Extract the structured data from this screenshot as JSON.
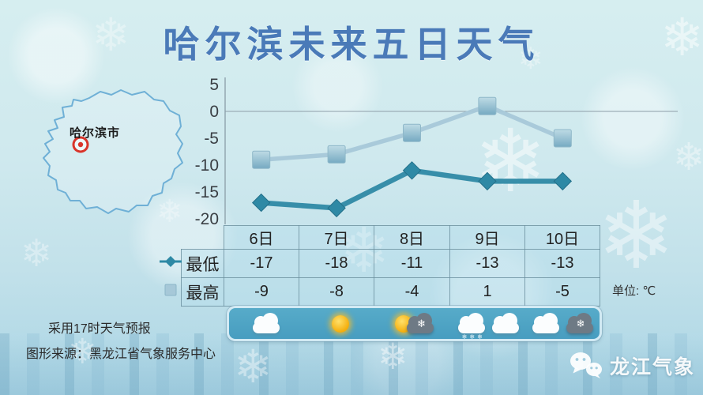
{
  "title": "哈尔滨未来五日天气",
  "map": {
    "region_label": "哈尔滨市"
  },
  "chart_data": {
    "type": "line",
    "categories": [
      "6日",
      "7日",
      "8日",
      "9日",
      "10日"
    ],
    "series": [
      {
        "name": "最低",
        "values": [
          -17,
          -18,
          -11,
          -13,
          -13
        ],
        "marker": "diamond",
        "color": "#2e89a5"
      },
      {
        "name": "最高",
        "values": [
          -9,
          -8,
          -4,
          1,
          -5
        ],
        "marker": "square",
        "color": "#a6c8d8"
      }
    ],
    "ylim": [
      -20,
      5
    ],
    "yticks": [
      5,
      0,
      -5,
      -10,
      -15,
      -20
    ],
    "grid": "zero-line-only",
    "legend_position": "table-left",
    "unit_label": "单位: ℃",
    "title": "哈尔滨未来五日天气",
    "xlabel": "",
    "ylabel": ""
  },
  "table": {
    "columns": [
      "6日",
      "7日",
      "8日",
      "9日",
      "10日"
    ],
    "rows": [
      {
        "label": "最低",
        "values": [
          "-17",
          "-18",
          "-11",
          "-13",
          "-13"
        ]
      },
      {
        "label": "最高",
        "values": [
          "-9",
          "-8",
          "-4",
          "1",
          "-5"
        ]
      }
    ]
  },
  "weather_icons": [
    {
      "day": "6日",
      "name": "cloudy-icon",
      "parts": [
        "cloud-white"
      ]
    },
    {
      "day": "7日",
      "name": "sunny-icon",
      "parts": [
        "sun"
      ]
    },
    {
      "day": "8日",
      "name": "sunny-to-snow-icon",
      "parts": [
        "sun",
        "cloud-dark-snow"
      ]
    },
    {
      "day": "9日",
      "name": "light-snow-to-cloudy-icon",
      "parts": [
        "cloud-snow",
        "cloud-white"
      ]
    },
    {
      "day": "10日",
      "name": "cloudy-to-snow-icon",
      "parts": [
        "cloud-white",
        "cloud-dark-snow"
      ]
    }
  ],
  "footer": {
    "note1": "采用17时天气预报",
    "note2": "图形来源：黑龙江省气象服务中心"
  },
  "branding": {
    "name": "龙江气象",
    "icon": "wechat-icon"
  },
  "decor": {
    "snowflake_glyph": "❄",
    "snow_specks": "❄❄❄"
  },
  "colors": {
    "title_blue": "#4a7ab8",
    "low_series": "#2e89a5",
    "high_series": "#a6c8d8",
    "icon_bar": "#4aa0c2",
    "marker_red": "#d9342a",
    "map_outline": "#6fb0d6"
  }
}
